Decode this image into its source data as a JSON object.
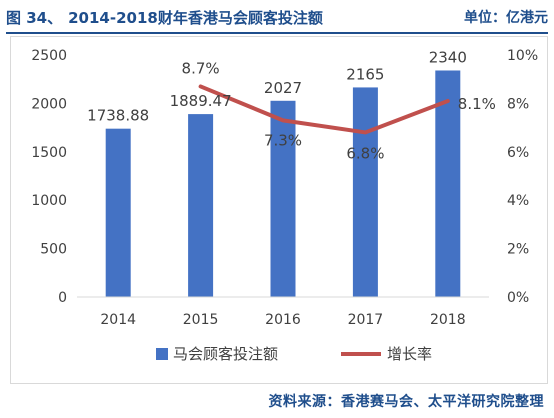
{
  "caption": {
    "figure_label": "图 34、",
    "title": "2014-2018财年香港马会顾客投注额",
    "unit": "单位：亿港元"
  },
  "source": "资料来源：香港赛马会、太平洋研究院整理",
  "colors": {
    "bar": "#4472c4",
    "line": "#c0504d",
    "caption": "#1f4e8c",
    "text": "#404040",
    "grid": "#d9d9d9"
  },
  "chart_data": {
    "type": "bar",
    "categories": [
      "2014",
      "2015",
      "2016",
      "2017",
      "2018"
    ],
    "series": [
      {
        "name": "马会顾客投注额",
        "type": "bar",
        "axis": "left",
        "values": [
          1738.88,
          1889.47,
          2027,
          2165,
          2340
        ],
        "labels": [
          "1738.88",
          "1889.47",
          "2027",
          "2165",
          "2340"
        ]
      },
      {
        "name": "增长率",
        "type": "line",
        "axis": "right",
        "x": [
          "2015",
          "2016",
          "2017",
          "2018"
        ],
        "values": [
          8.7,
          7.3,
          6.8,
          8.1
        ],
        "labels": [
          "8.7%",
          "7.3%",
          "6.8%",
          "8.1%"
        ]
      }
    ],
    "y_left": {
      "range": [
        0,
        2500
      ],
      "ticks": [
        "0",
        "500",
        "1000",
        "1500",
        "2000",
        "2500"
      ]
    },
    "y_right": {
      "range": [
        0,
        10
      ],
      "ticks": [
        "0%",
        "2%",
        "4%",
        "6%",
        "8%",
        "10%"
      ]
    },
    "grid": false,
    "legend": "bottom"
  }
}
